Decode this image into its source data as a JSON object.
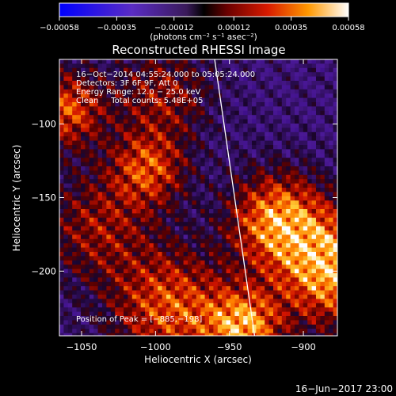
{
  "chart_data": {
    "type": "heatmap",
    "title": "Reconstructed RHESSI Image",
    "xlabel": "Heliocentric X (arcsec)",
    "ylabel": "Heliocentric Y (arcsec)",
    "xlim": [
      -1065,
      -877
    ],
    "ylim": [
      -244,
      -56
    ],
    "x_ticks": [
      {
        "value": -1050,
        "label": "−1050"
      },
      {
        "value": -1000,
        "label": "−1000"
      },
      {
        "value": -950,
        "label": "−950"
      },
      {
        "value": -900,
        "label": "−900"
      }
    ],
    "y_ticks": [
      {
        "value": -100,
        "label": "−100"
      },
      {
        "value": -150,
        "label": "−150"
      },
      {
        "value": -200,
        "label": "−200"
      }
    ],
    "colorbar": {
      "min": -0.00058,
      "max": 0.00058,
      "ticks": [
        {
          "value": -0.00058,
          "label": "−0.00058"
        },
        {
          "value": -0.00035,
          "label": "−0.00035"
        },
        {
          "value": -0.00012,
          "label": "−0.00012"
        },
        {
          "value": 0.00012,
          "label": "0.00012"
        },
        {
          "value": 0.00035,
          "label": "0.00035"
        },
        {
          "value": 0.00058,
          "label": "0.00058"
        }
      ],
      "unit_label": "(photons cm⁻² s⁻¹ asec⁻²)"
    },
    "annotations": [
      "16−Oct−2014 04:55:24.000 to 05:05:24.000",
      "Detectors: 3F 6F 9F, Att 0",
      "Energy Range: 12.0 − 25.0 keV",
      "Clean     Total counts: 5.48E+05"
    ],
    "peak_label": "Position of Peak = [−885,−198]",
    "peak_position": [
      -885,
      -198
    ],
    "limb_line": [
      [
        -960,
        -56
      ],
      [
        -933,
        -244
      ]
    ]
  },
  "footer_date": "16−Jun−2017 23:00"
}
